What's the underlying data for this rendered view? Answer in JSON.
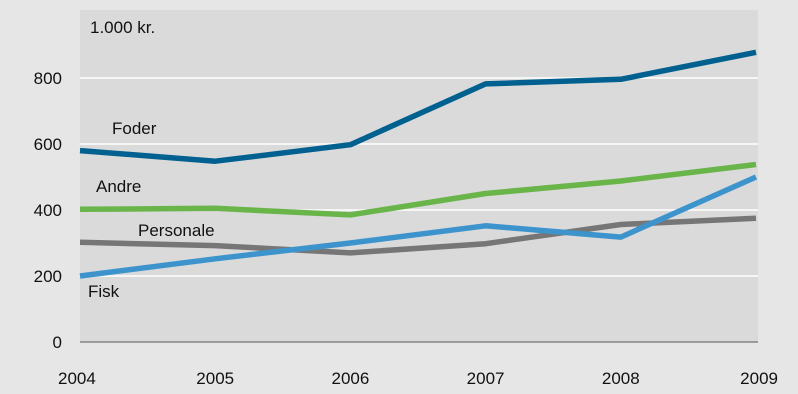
{
  "chart_data": {
    "type": "line",
    "title": "",
    "unit_label": "1.000 kr.",
    "xlabel": "",
    "ylabel": "",
    "categories": [
      "2004",
      "2005",
      "2006",
      "2007",
      "2008",
      "2009"
    ],
    "ylim": [
      0,
      900
    ],
    "yticks": [
      "0",
      "200",
      "400",
      "600",
      "800"
    ],
    "grid": true,
    "series": [
      {
        "name": "Foder",
        "color": "#00608f",
        "values": [
          580,
          548,
          598,
          782,
          796,
          878
        ]
      },
      {
        "name": "Andre",
        "color": "#6ab54a",
        "values": [
          402,
          405,
          385,
          450,
          488,
          538
        ]
      },
      {
        "name": "Personale",
        "color": "#767676",
        "values": [
          302,
          292,
          270,
          298,
          356,
          375
        ]
      },
      {
        "name": "Fisk",
        "color": "#3d94cc",
        "values": [
          200,
          252,
          300,
          352,
          318,
          500
        ]
      }
    ]
  }
}
